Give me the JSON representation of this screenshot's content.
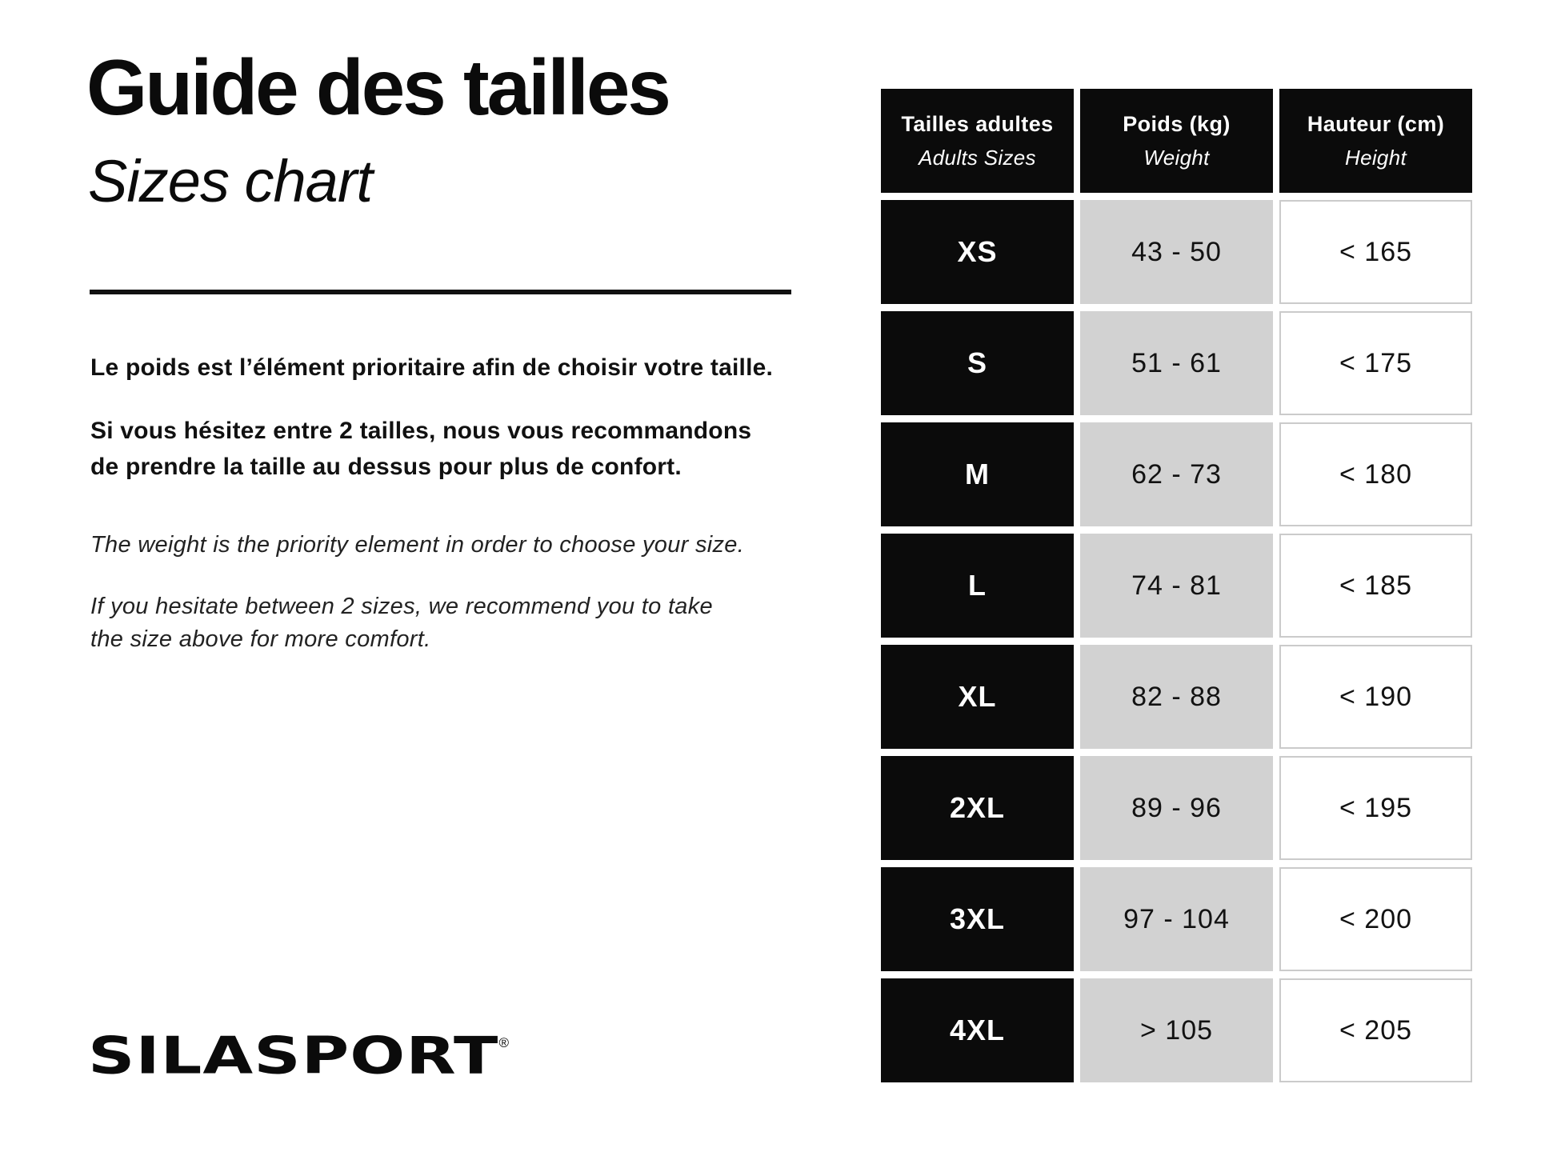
{
  "header": {
    "title_fr": "Guide des tailles",
    "title_en": "Sizes chart"
  },
  "intro": {
    "fr_paragraph_1": "Le poids est l’élément prioritaire afin de choisir votre taille.",
    "fr_paragraph_2": "Si vous hésitez entre 2 tailles, nous vous recommandons\nde prendre la taille au dessus pour plus de confort.",
    "en_paragraph_1": "The weight is the priority element in order to choose your size.",
    "en_paragraph_2": "If you hesitate between 2 sizes, we recommend you to take\nthe size above for more comfort."
  },
  "logo": {
    "text": "SILASPORT",
    "registered_mark": "®"
  },
  "table": {
    "headers": [
      {
        "fr": "Tailles adultes",
        "en": "Adults Sizes"
      },
      {
        "fr": "Poids (kg)",
        "en": "Weight"
      },
      {
        "fr": "Hauteur (cm)",
        "en": "Height"
      }
    ],
    "rows": [
      {
        "size": "XS",
        "weight": "43 - 50",
        "height": "< 165"
      },
      {
        "size": "S",
        "weight": "51 - 61",
        "height": "< 175"
      },
      {
        "size": "M",
        "weight": "62 - 73",
        "height": "< 180"
      },
      {
        "size": "L",
        "weight": "74 - 81",
        "height": "< 185"
      },
      {
        "size": "XL",
        "weight": "82 - 88",
        "height": "< 190"
      },
      {
        "size": "2XL",
        "weight": "89 - 96",
        "height": "< 195"
      },
      {
        "size": "3XL",
        "weight": "97 - 104",
        "height": "< 200"
      },
      {
        "size": "4XL",
        "weight": "> 105",
        "height": "< 205"
      }
    ]
  },
  "chart_data": {
    "type": "table",
    "title": "Guide des tailles / Sizes chart",
    "columns": [
      "Tailles adultes / Adults Sizes",
      "Poids (kg) / Weight",
      "Hauteur (cm) / Height"
    ],
    "rows": [
      [
        "XS",
        "43 - 50",
        "< 165"
      ],
      [
        "S",
        "51 - 61",
        "< 175"
      ],
      [
        "M",
        "62 - 73",
        "< 180"
      ],
      [
        "L",
        "74 - 81",
        "< 185"
      ],
      [
        "XL",
        "82 - 88",
        "< 190"
      ],
      [
        "2XL",
        "89 - 96",
        "< 195"
      ],
      [
        "3XL",
        "97 - 104",
        "< 200"
      ],
      [
        "4XL",
        "> 105",
        "< 205"
      ]
    ]
  },
  "colors": {
    "black_cell": "#0b0b0b",
    "gray_cell": "#d2d2d2",
    "height_cell_border": "#cbcbcb",
    "background": "#ffffff"
  }
}
